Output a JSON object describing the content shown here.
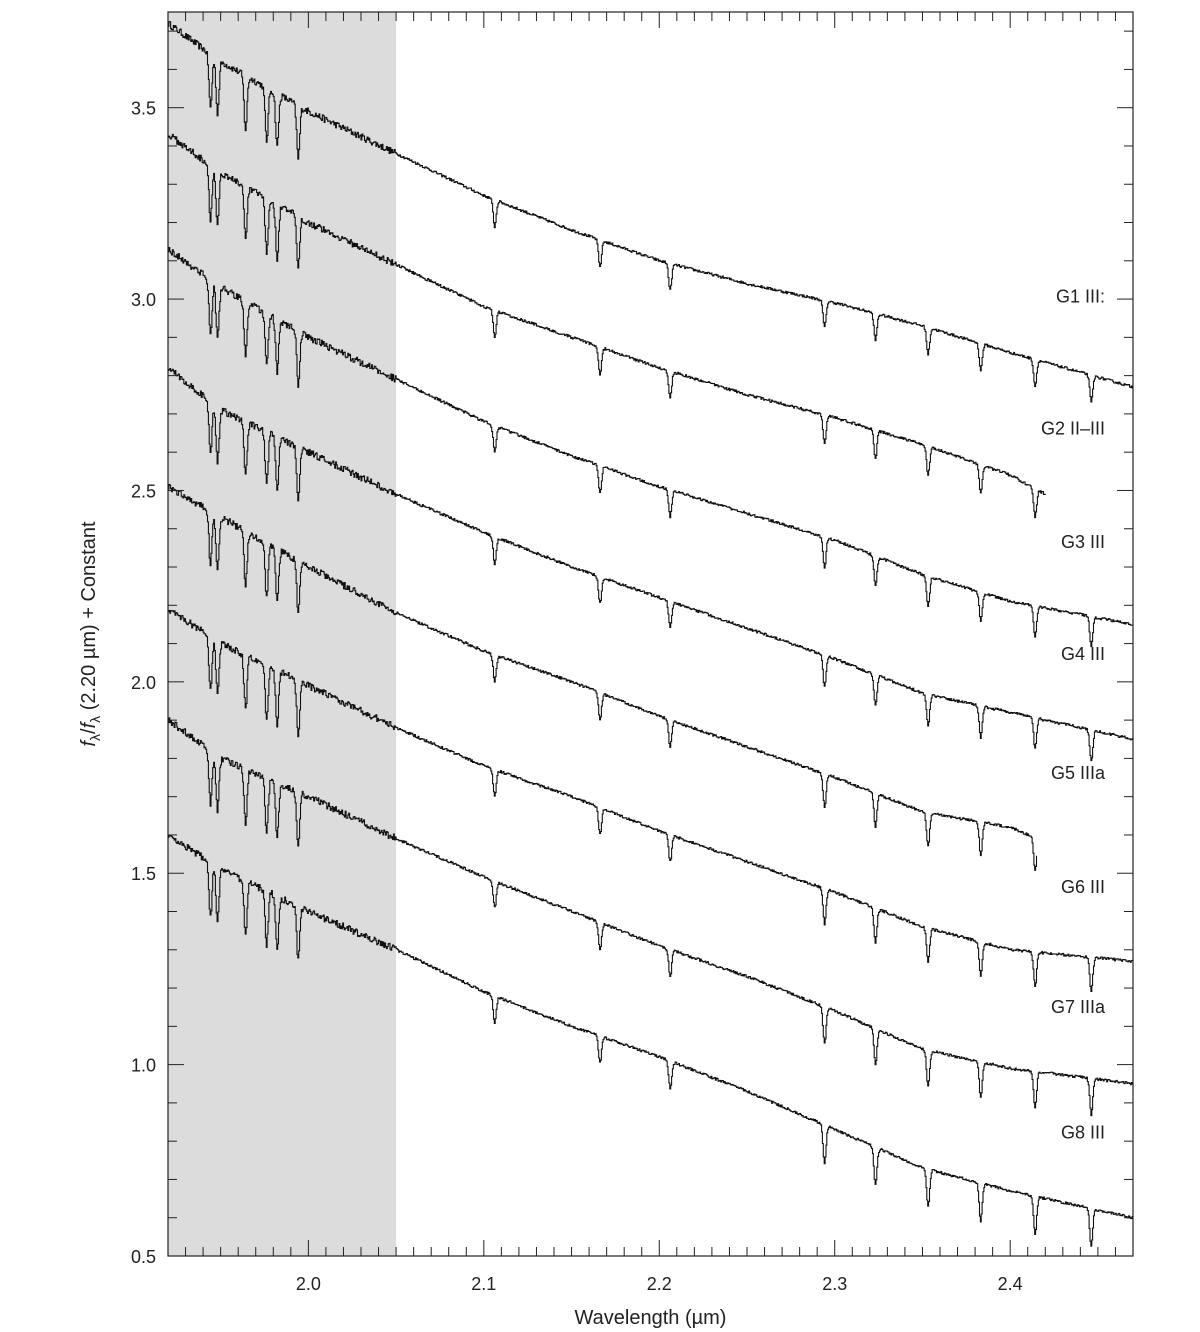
{
  "chart_data": {
    "type": "line",
    "title": "",
    "xlabel": "Wavelength (µm)",
    "ylabel": "fλ/fλ (2.20 µm) + Constant",
    "ylabel_parts": {
      "sym1": "f",
      "sub1": "λ",
      "slash": "/",
      "sym2": "f",
      "sub2": "λ",
      "rest": " (2.20 µm) + Constant"
    },
    "xlim": [
      1.92,
      2.47
    ],
    "ylim": [
      0.5,
      3.75
    ],
    "xticks": [
      2.0,
      2.1,
      2.2,
      2.3,
      2.4
    ],
    "xtick_labels": [
      "2.0",
      "2.1",
      "2.2",
      "2.3",
      "2.4"
    ],
    "yticks": [
      0.5,
      1.0,
      1.5,
      2.0,
      2.5,
      3.0,
      3.5
    ],
    "ytick_labels": [
      "0.5",
      "1.0",
      "1.5",
      "2.0",
      "2.5",
      "3.0",
      "3.5"
    ],
    "shaded_region": {
      "x_start": 1.92,
      "x_end": 2.05,
      "color": "#dcdcdc"
    },
    "grid": false,
    "line_color": "#111111",
    "absorption_features_um": [
      1.944,
      1.948,
      1.964,
      1.976,
      1.982,
      1.994,
      2.106,
      2.166,
      2.206,
      2.294,
      2.323,
      2.353,
      2.383,
      2.414,
      2.446
    ],
    "series": [
      {
        "name": "G1 III:",
        "x": [
          1.92,
          1.95,
          2.0,
          2.05,
          2.1,
          2.15,
          2.2,
          2.25,
          2.3,
          2.35,
          2.4,
          2.47
        ],
        "values": [
          3.72,
          3.62,
          3.49,
          3.38,
          3.27,
          3.18,
          3.1,
          3.04,
          2.99,
          2.93,
          2.86,
          2.77
        ]
      },
      {
        "name": "G2 II–III",
        "x": [
          1.92,
          1.95,
          2.0,
          2.05,
          2.1,
          2.15,
          2.2,
          2.25,
          2.3,
          2.35,
          2.4,
          2.42
        ],
        "values": [
          3.43,
          3.33,
          3.2,
          3.09,
          2.98,
          2.9,
          2.82,
          2.75,
          2.69,
          2.62,
          2.54,
          2.49
        ]
      },
      {
        "name": "G3 III",
        "x": [
          1.92,
          1.95,
          2.0,
          2.05,
          2.1,
          2.15,
          2.2,
          2.25,
          2.3,
          2.35,
          2.4,
          2.47
        ],
        "values": [
          3.13,
          3.03,
          2.9,
          2.79,
          2.68,
          2.59,
          2.51,
          2.44,
          2.37,
          2.28,
          2.21,
          2.15
        ]
      },
      {
        "name": "G4 III",
        "x": [
          1.92,
          1.95,
          2.0,
          2.05,
          2.1,
          2.15,
          2.2,
          2.25,
          2.3,
          2.35,
          2.4,
          2.47
        ],
        "values": [
          2.82,
          2.71,
          2.6,
          2.49,
          2.39,
          2.3,
          2.22,
          2.14,
          2.06,
          1.97,
          1.92,
          1.85
        ]
      },
      {
        "name": "G5 IIIa",
        "x": [
          1.92,
          1.95,
          2.0,
          2.05,
          2.1,
          2.15,
          2.2,
          2.25,
          2.3,
          2.35,
          2.4,
          2.415
        ],
        "values": [
          2.51,
          2.43,
          2.3,
          2.18,
          2.08,
          2.0,
          1.91,
          1.83,
          1.75,
          1.66,
          1.62,
          1.59
        ]
      },
      {
        "name": "G6 III",
        "x": [
          1.92,
          1.95,
          2.0,
          2.05,
          2.1,
          2.15,
          2.2,
          2.25,
          2.3,
          2.35,
          2.4,
          2.47
        ],
        "values": [
          2.19,
          2.1,
          1.99,
          1.88,
          1.78,
          1.7,
          1.61,
          1.53,
          1.45,
          1.36,
          1.3,
          1.27
        ]
      },
      {
        "name": "G7 IIIa",
        "x": [
          1.92,
          1.95,
          2.0,
          2.05,
          2.1,
          2.15,
          2.2,
          2.25,
          2.3,
          2.35,
          2.4,
          2.47
        ],
        "values": [
          1.9,
          1.8,
          1.7,
          1.59,
          1.49,
          1.4,
          1.31,
          1.23,
          1.14,
          1.04,
          0.99,
          0.95
        ]
      },
      {
        "name": "G8 III",
        "x": [
          1.92,
          1.95,
          2.0,
          2.05,
          2.1,
          2.15,
          2.2,
          2.25,
          2.3,
          2.35,
          2.4,
          2.47
        ],
        "values": [
          1.6,
          1.51,
          1.4,
          1.3,
          1.19,
          1.1,
          1.02,
          0.93,
          0.83,
          0.73,
          0.67,
          0.6
        ]
      }
    ]
  }
}
